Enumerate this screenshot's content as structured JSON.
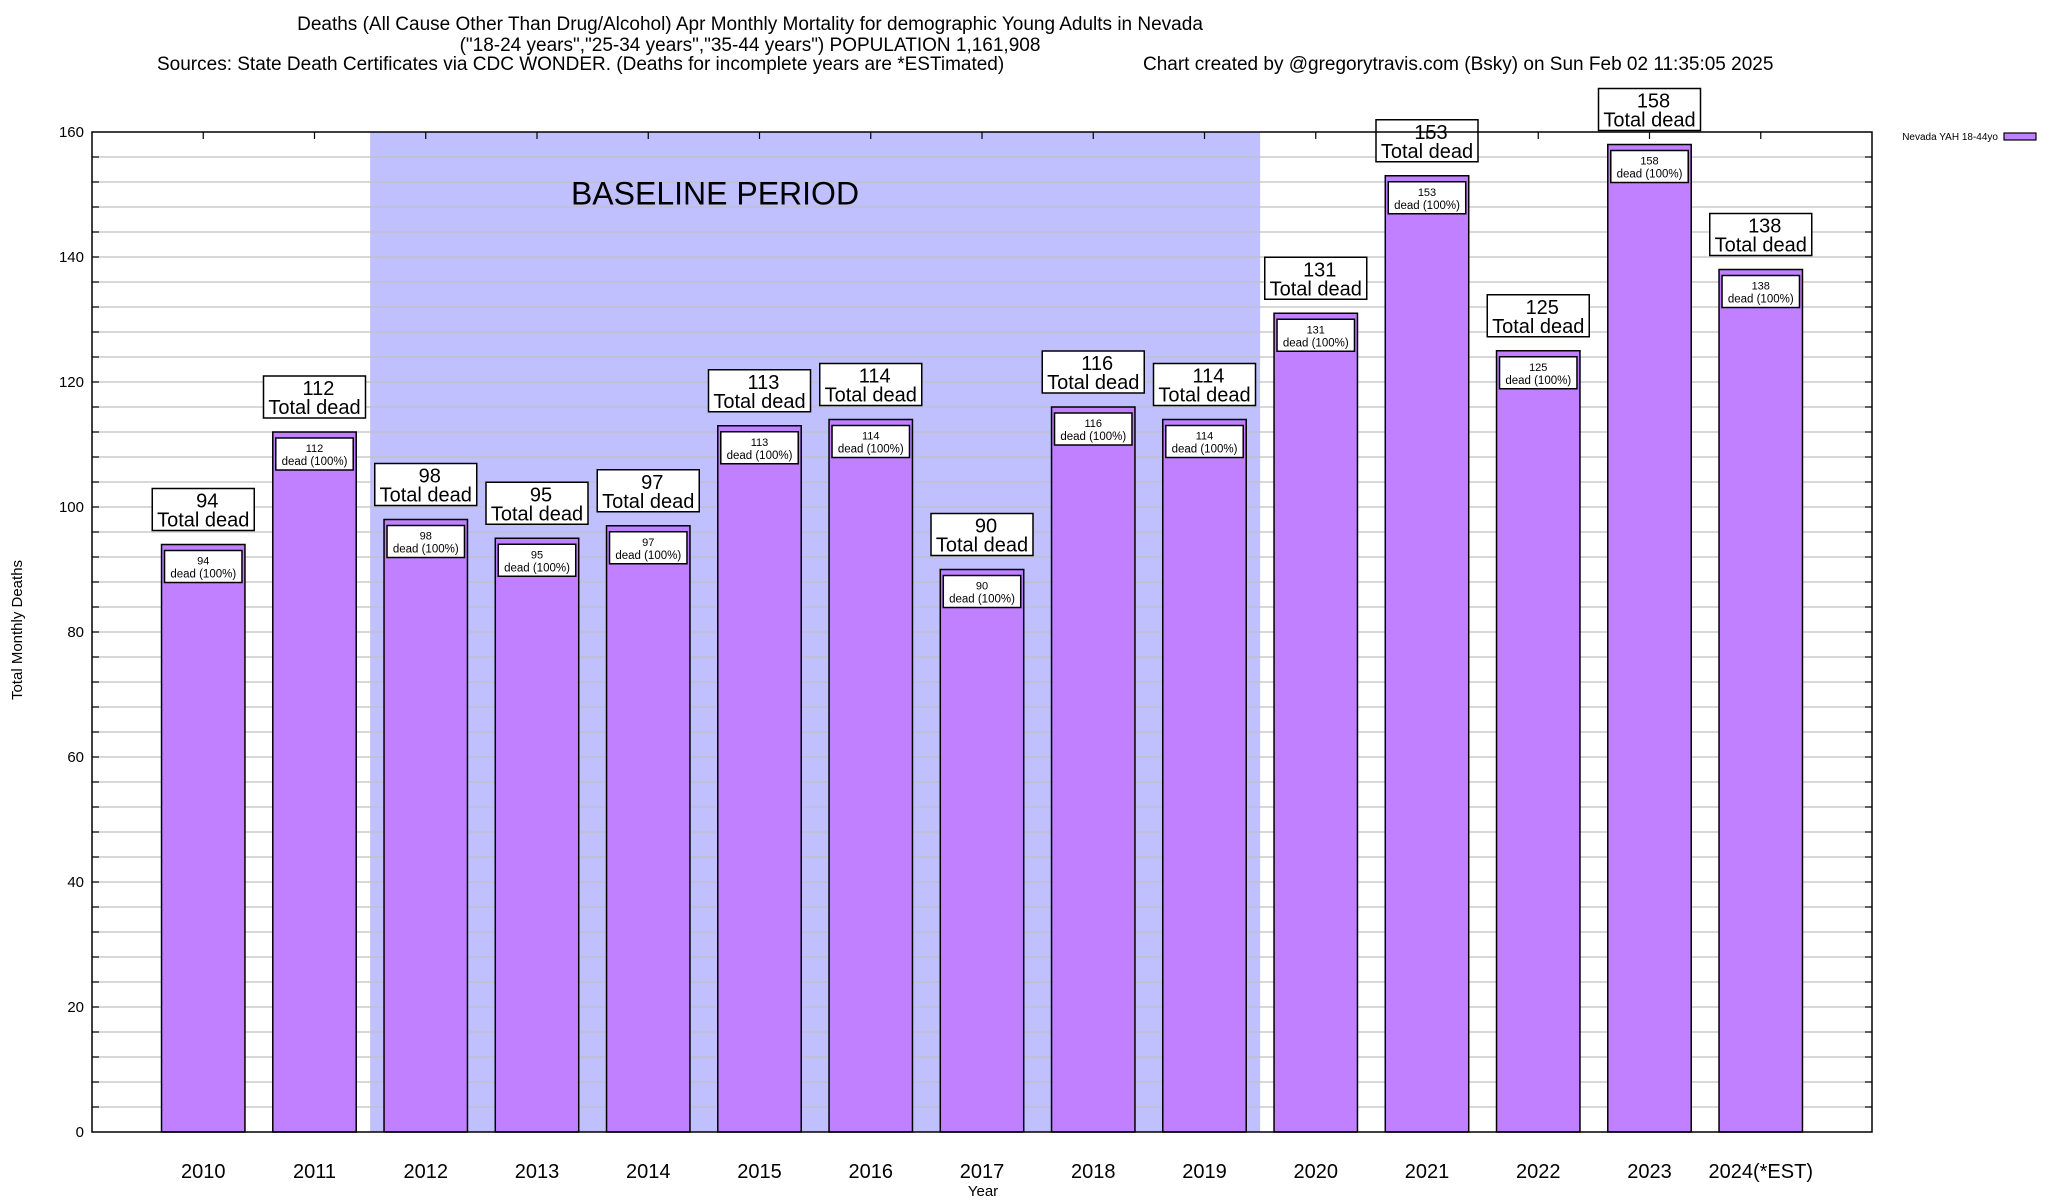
{
  "chart_data": {
    "type": "bar",
    "title": "Deaths (All Cause Other Than Drug/Alcohol) Apr Monthly Mortality for demographic Young Adults in Nevada",
    "subtitle": "(\"18-24 years\",\"25-34 years\",\"35-44 years\") POPULATION 1,161,908",
    "sources": "Sources: State Death Certificates via CDC WONDER. (Deaths for incomplete years are *ESTimated)",
    "credit": "Chart created by @gregorytravis.com (Bsky) on Sun Feb 02 11:35:05 2025",
    "xlabel": "Year",
    "ylabel": "Total Monthly Deaths",
    "ylim": [
      0,
      160
    ],
    "yticks": [
      0,
      20,
      40,
      60,
      80,
      100,
      120,
      140,
      160
    ],
    "minor_grid_step": 4,
    "grid": true,
    "categories": [
      "2010",
      "2011",
      "2012",
      "2013",
      "2014",
      "2015",
      "2016",
      "2017",
      "2018",
      "2019",
      "2020",
      "2021",
      "2022",
      "2023",
      "2024(*EST)"
    ],
    "series": [
      {
        "name": "Nevada YAH 18-44yo",
        "color": "#c080ff",
        "values": [
          94,
          112,
          98,
          95,
          97,
          113,
          114,
          90,
          116,
          114,
          131,
          153,
          125,
          158,
          138
        ]
      }
    ],
    "top_label_suffix": "Total dead",
    "inner_label_suffix": "dead (100%)",
    "annotation": {
      "text": "BASELINE PERIOD",
      "from_category": "2012",
      "to_category": "2019",
      "color": "#c0c0ff"
    },
    "legend": {
      "position": "top-right",
      "entries": [
        "Nevada YAH 18-44yo"
      ]
    },
    "grid_color": "#c0c0c0"
  }
}
